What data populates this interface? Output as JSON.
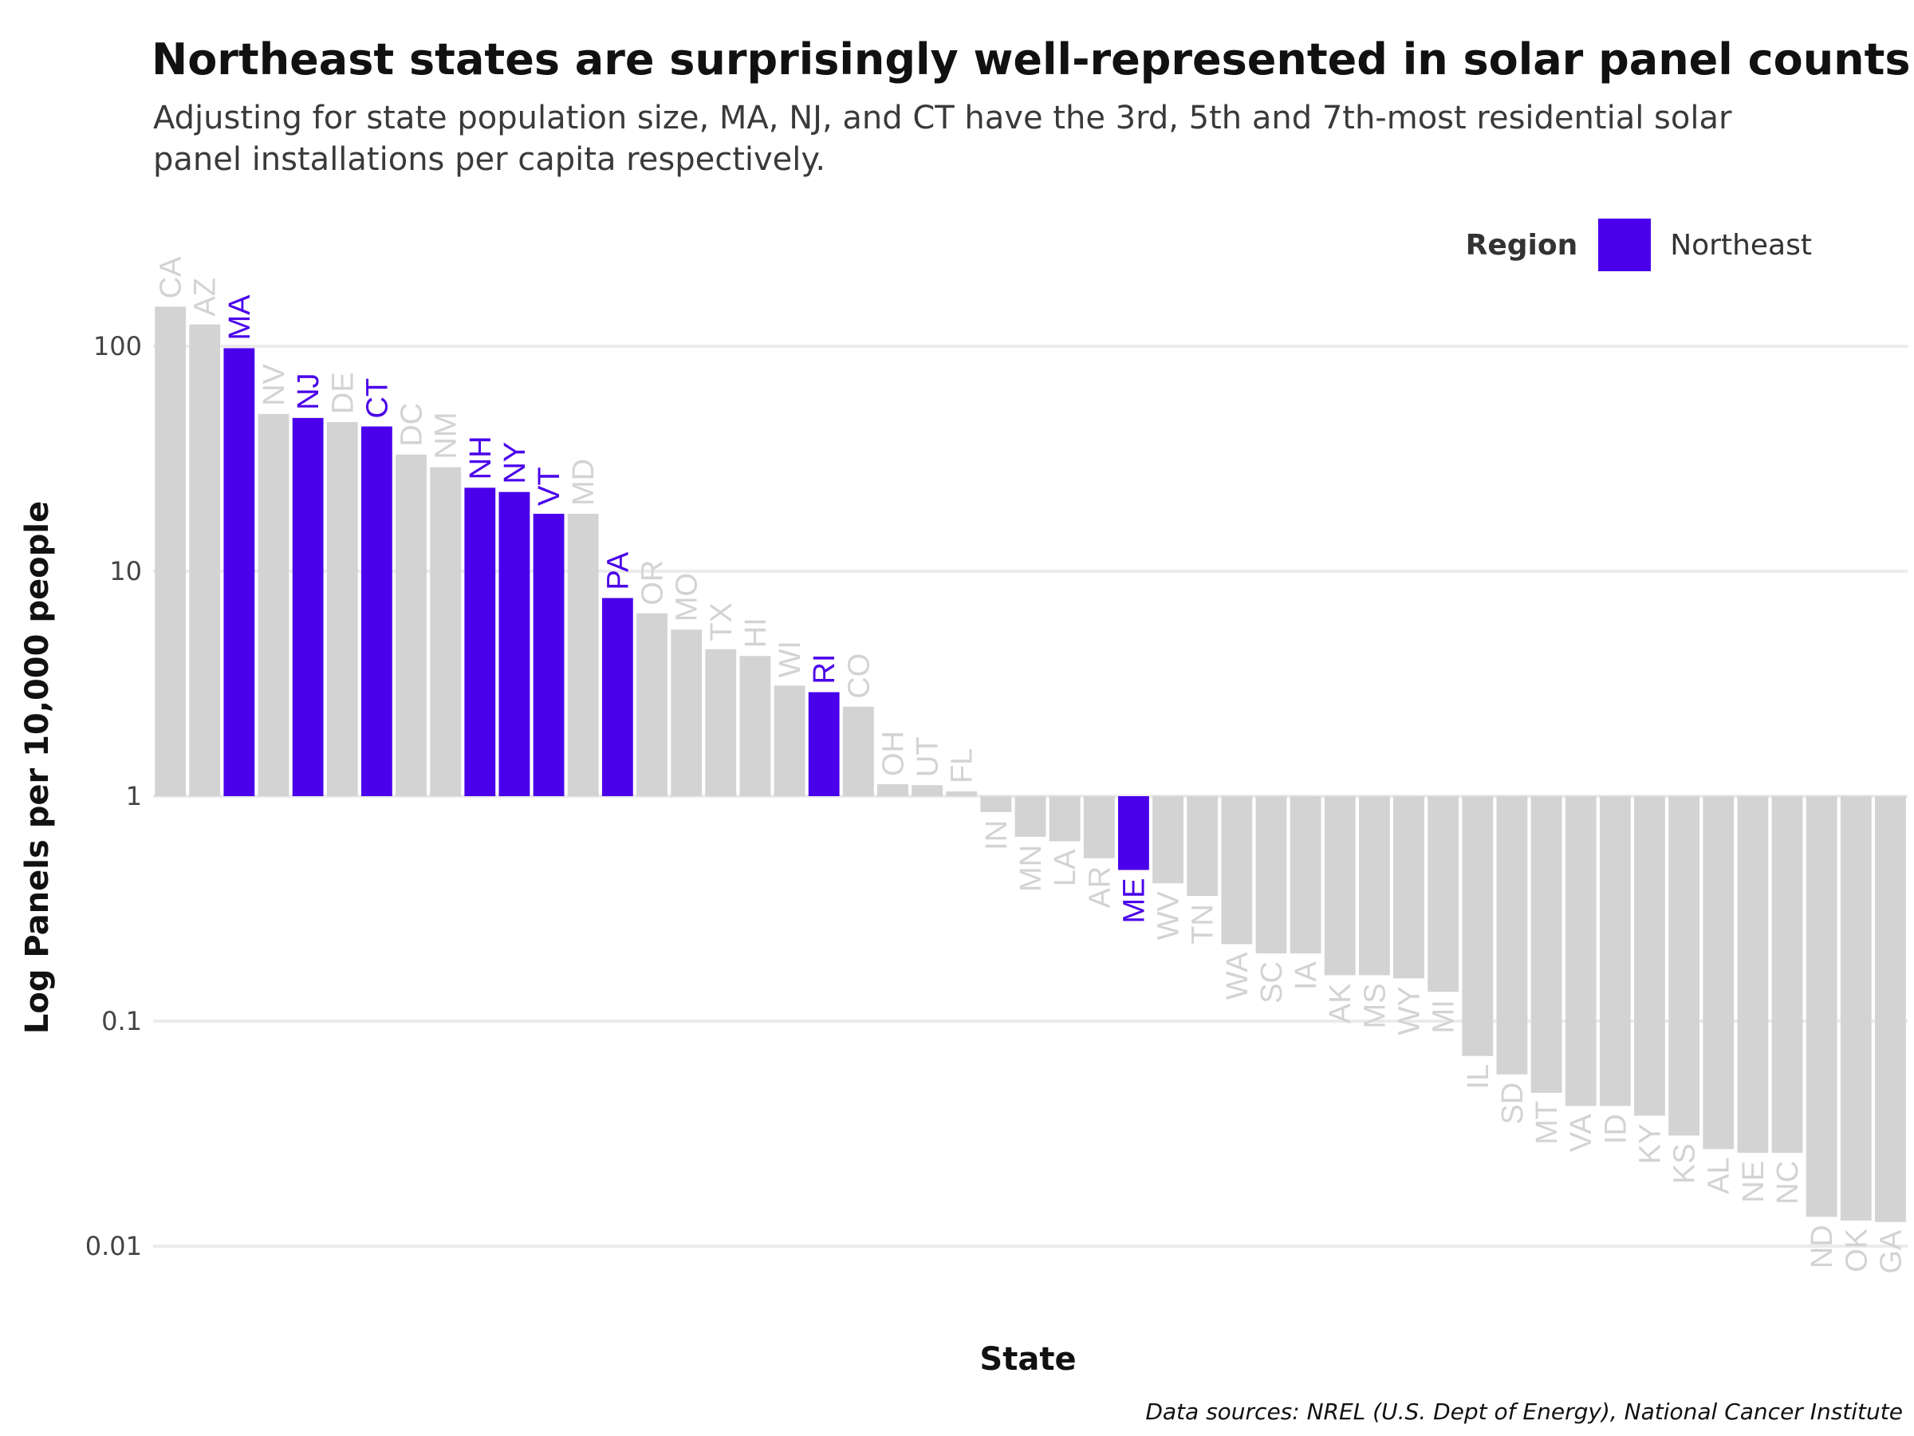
{
  "title": "Northeast states are surprisingly well-represented in solar panel counts",
  "subtitle": "Adjusting for state population size, MA, NJ, and CT have the 3rd, 5th and 7th-most residential solar panel installations per capita respectively.",
  "caption": "Data sources: NREL (U.S. Dept of Energy), National Cancer Institute",
  "legend": {
    "title": "Region",
    "label": "Northeast",
    "color": "#4a00ea"
  },
  "colors": {
    "northeast": "#4a00ea",
    "other": "#d3d3d3",
    "grid": "#ebebeb"
  },
  "chart_data": {
    "type": "bar",
    "title": "Northeast states are surprisingly well-represented in solar panel counts",
    "xlabel": "State",
    "ylabel": "Log Panels per 10,000 people",
    "yscale": "log10",
    "ylim": [
      0.0085,
      200
    ],
    "baseline": 1,
    "yticks": [
      0.01,
      0.1,
      1,
      10,
      100
    ],
    "ytick_labels": [
      "0.01",
      "0.1",
      "1",
      "10",
      "100"
    ],
    "grid": true,
    "legend_position": "top-right",
    "categories": [
      "CA",
      "AZ",
      "MA",
      "NV",
      "NJ",
      "DE",
      "CT",
      "DC",
      "NM",
      "NH",
      "NY",
      "VT",
      "MD",
      "PA",
      "OR",
      "MO",
      "TX",
      "HI",
      "WI",
      "RI",
      "CO",
      "OH",
      "UT",
      "FL",
      "IN",
      "MN",
      "LA",
      "AR",
      "ME",
      "WV",
      "TN",
      "WA",
      "SC",
      "IA",
      "AK",
      "MS",
      "WY",
      "MI",
      "IL",
      "SD",
      "MT",
      "VA",
      "ID",
      "KY",
      "KS",
      "AL",
      "NE",
      "NC",
      "ND",
      "OK",
      "GA"
    ],
    "values": [
      150,
      125,
      98,
      50,
      48,
      46,
      44,
      33,
      29,
      23.5,
      22.5,
      18,
      18,
      7.6,
      6.5,
      5.5,
      4.5,
      4.2,
      3.1,
      2.9,
      2.5,
      1.13,
      1.12,
      1.05,
      0.85,
      0.66,
      0.63,
      0.53,
      0.47,
      0.41,
      0.36,
      0.22,
      0.2,
      0.2,
      0.16,
      0.16,
      0.155,
      0.135,
      0.07,
      0.058,
      0.048,
      0.042,
      0.042,
      0.038,
      0.031,
      0.027,
      0.026,
      0.026,
      0.0135,
      0.013,
      0.0128
    ],
    "northeast": [
      "MA",
      "NJ",
      "CT",
      "NH",
      "NY",
      "VT",
      "PA",
      "RI",
      "ME"
    ]
  }
}
